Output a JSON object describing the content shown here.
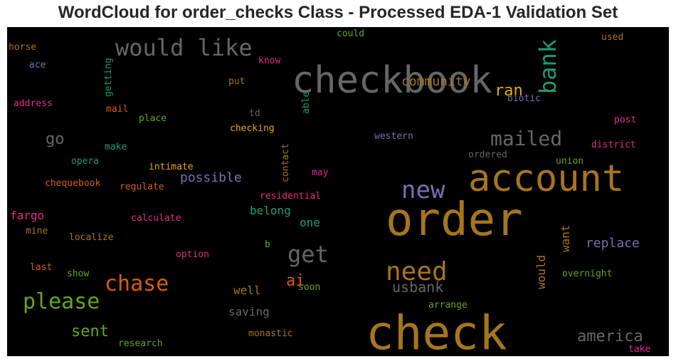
{
  "chart_data": {
    "type": "wordcloud",
    "title": "WordCloud for order_checks Class - Processed EDA-1 Validation Set",
    "background": "#000000",
    "words": [
      {
        "text": "checkbook",
        "size": 52,
        "color": "#666666",
        "rot": 0
      },
      {
        "text": "account",
        "size": 52,
        "color": "#a6761d",
        "rot": 0
      },
      {
        "text": "order",
        "size": 64,
        "color": "#a6761d",
        "rot": 0
      },
      {
        "text": "check",
        "size": 66,
        "color": "#a6761d",
        "rot": 0
      },
      {
        "text": "would like",
        "size": 32,
        "color": "#666666",
        "rot": 0
      },
      {
        "text": "bank",
        "size": 32,
        "color": "#1b9e77",
        "rot": -90
      },
      {
        "text": "new",
        "size": 34,
        "color": "#7570b3",
        "rot": 0
      },
      {
        "text": "need",
        "size": 36,
        "color": "#a6761d",
        "rot": 0
      },
      {
        "text": "get",
        "size": 32,
        "color": "#666666",
        "rot": 0
      },
      {
        "text": "mailed",
        "size": 28,
        "color": "#666666",
        "rot": 0
      },
      {
        "text": "chase",
        "size": 30,
        "color": "#d95f02",
        "rot": 0
      },
      {
        "text": "please",
        "size": 30,
        "color": "#66a61e",
        "rot": 0
      },
      {
        "text": "ran",
        "size": 22,
        "color": "#e6ab02",
        "rot": 0
      },
      {
        "text": "go",
        "size": 22,
        "color": "#666666",
        "rot": 0
      },
      {
        "text": "community",
        "size": 18,
        "color": "#a6761d",
        "rot": 0
      },
      {
        "text": "sent",
        "size": 22,
        "color": "#66a61e",
        "rot": 0
      },
      {
        "text": "usbank",
        "size": 20,
        "color": "#666666",
        "rot": 0
      },
      {
        "text": "america",
        "size": 22,
        "color": "#666666",
        "rot": 0
      },
      {
        "text": "ai",
        "size": 22,
        "color": "#d95f02",
        "rot": 0
      },
      {
        "text": "possible",
        "size": 18,
        "color": "#7570b3",
        "rot": 0
      },
      {
        "text": "replace",
        "size": 18,
        "color": "#7570b3",
        "rot": 0
      },
      {
        "text": "belong",
        "size": 16,
        "color": "#1b9e77",
        "rot": 0
      },
      {
        "text": "one",
        "size": 16,
        "color": "#1b9e77",
        "rot": 0
      },
      {
        "text": "fargo",
        "size": 16,
        "color": "#e7298a",
        "rot": 0
      },
      {
        "text": "well",
        "size": 16,
        "color": "#a6761d",
        "rot": 0
      },
      {
        "text": "saving",
        "size": 16,
        "color": "#666666",
        "rot": 0
      },
      {
        "text": "want",
        "size": 16,
        "color": "#a6761d",
        "rot": -90
      },
      {
        "text": "would",
        "size": 16,
        "color": "#a6761d",
        "rot": -90
      },
      {
        "text": "horse",
        "size": 13,
        "color": "#a6761d",
        "rot": 0
      },
      {
        "text": "ace",
        "size": 13,
        "color": "#7570b3",
        "rot": 0
      },
      {
        "text": "address",
        "size": 13,
        "color": "#e7298a",
        "rot": 0
      },
      {
        "text": "getting",
        "size": 13,
        "color": "#1b9e77",
        "rot": -90
      },
      {
        "text": "know",
        "size": 13,
        "color": "#e7298a",
        "rot": 0
      },
      {
        "text": "could",
        "size": 13,
        "color": "#66a61e",
        "rot": 0
      },
      {
        "text": "used",
        "size": 13,
        "color": "#a6761d",
        "rot": 0
      },
      {
        "text": "put",
        "size": 13,
        "color": "#a6761d",
        "rot": 0
      },
      {
        "text": "able",
        "size": 13,
        "color": "#1b9e77",
        "rot": -90
      },
      {
        "text": "biotic",
        "size": 13,
        "color": "#7570b3",
        "rot": 0
      },
      {
        "text": "mail",
        "size": 13,
        "color": "#d95f02",
        "rot": 0
      },
      {
        "text": "place",
        "size": 13,
        "color": "#66a61e",
        "rot": 0
      },
      {
        "text": "td",
        "size": 13,
        "color": "#666666",
        "rot": 0
      },
      {
        "text": "post",
        "size": 13,
        "color": "#e7298a",
        "rot": 0
      },
      {
        "text": "checking",
        "size": 13,
        "color": "#e6ab02",
        "rot": 0
      },
      {
        "text": "western",
        "size": 13,
        "color": "#7570b3",
        "rot": 0
      },
      {
        "text": "make",
        "size": 13,
        "color": "#1b9e77",
        "rot": 0
      },
      {
        "text": "contact",
        "size": 13,
        "color": "#a6761d",
        "rot": -90
      },
      {
        "text": "district",
        "size": 13,
        "color": "#e7298a",
        "rot": 0
      },
      {
        "text": "opera",
        "size": 13,
        "color": "#1b9e77",
        "rot": 0
      },
      {
        "text": "intimate",
        "size": 13,
        "color": "#e6ab02",
        "rot": 0
      },
      {
        "text": "ordered",
        "size": 13,
        "color": "#666666",
        "rot": 0
      },
      {
        "text": "union",
        "size": 13,
        "color": "#66a61e",
        "rot": 0
      },
      {
        "text": "may",
        "size": 13,
        "color": "#e7298a",
        "rot": 0
      },
      {
        "text": "chequebook",
        "size": 13,
        "color": "#d95f02",
        "rot": 0
      },
      {
        "text": "regulate",
        "size": 13,
        "color": "#d95f02",
        "rot": 0
      },
      {
        "text": "residential",
        "size": 13,
        "color": "#e7298a",
        "rot": 0
      },
      {
        "text": "calculate",
        "size": 13,
        "color": "#e7298a",
        "rot": 0
      },
      {
        "text": "mine",
        "size": 13,
        "color": "#a6761d",
        "rot": 0
      },
      {
        "text": "localize",
        "size": 13,
        "color": "#a6761d",
        "rot": 0
      },
      {
        "text": "b",
        "size": 13,
        "color": "#66a61e",
        "rot": 0
      },
      {
        "text": "option",
        "size": 13,
        "color": "#e7298a",
        "rot": 0
      },
      {
        "text": "last",
        "size": 13,
        "color": "#d95f02",
        "rot": 0
      },
      {
        "text": "show",
        "size": 13,
        "color": "#66a61e",
        "rot": 0
      },
      {
        "text": "soon",
        "size": 13,
        "color": "#66a61e",
        "rot": 0
      },
      {
        "text": "overnight",
        "size": 13,
        "color": "#66a61e",
        "rot": 0
      },
      {
        "text": "arrange",
        "size": 13,
        "color": "#66a61e",
        "rot": 0
      },
      {
        "text": "monastic",
        "size": 13,
        "color": "#a6761d",
        "rot": 0
      },
      {
        "text": "research",
        "size": 13,
        "color": "#66a61e",
        "rot": 0
      },
      {
        "text": "take",
        "size": 13,
        "color": "#e7298a",
        "rot": 0
      }
    ]
  }
}
